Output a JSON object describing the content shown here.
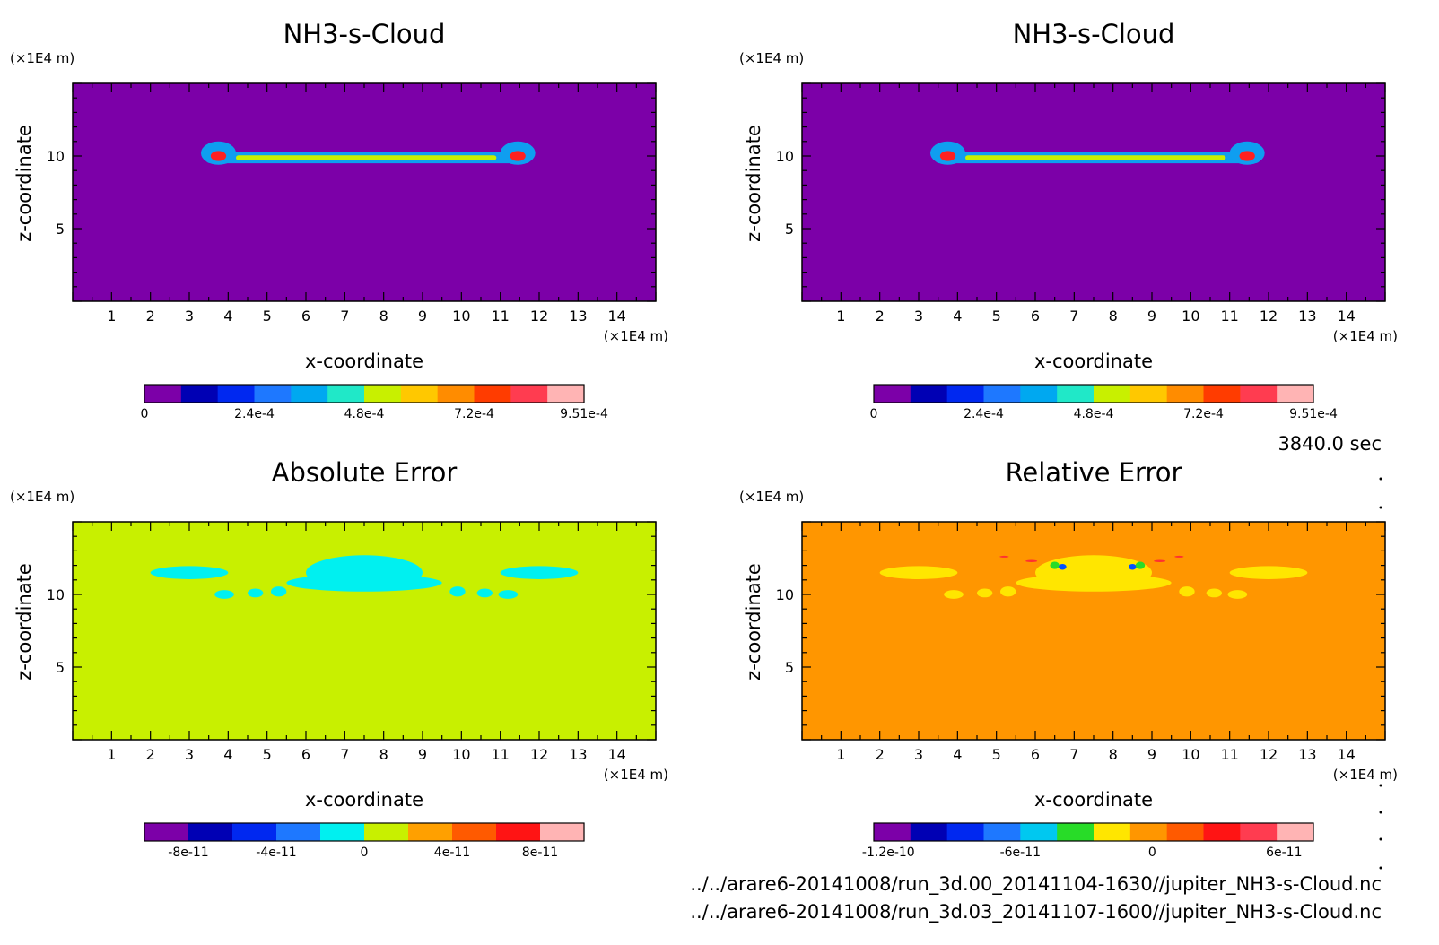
{
  "figure": {
    "time_label": "3840.0 sec",
    "source_files": [
      "../../arare6-20141008/run_3d.00_20141104-1630//jupiter_NH3-s-Cloud.nc",
      "../../arare6-20141008/run_3d.03_20141107-1600//jupiter_NH3-s-Cloud.nc"
    ]
  },
  "chart_data": [
    {
      "type": "heatmap",
      "title": "NH3-s-Cloud",
      "xlabel": "x-coordinate",
      "ylabel": "z-coordinate",
      "x_unit": "(×1E4 m)",
      "y_unit": "(×1E4 m)",
      "xlim": [
        0,
        15
      ],
      "ylim": [
        0,
        15
      ],
      "x_ticks": [
        1,
        2,
        3,
        4,
        5,
        6,
        7,
        8,
        9,
        10,
        11,
        12,
        13,
        14
      ],
      "y_ticks": [
        5,
        10
      ],
      "background_color": "#7c00a8",
      "features": [
        {
          "shape": "band",
          "x": [
            3.4,
            11.8
          ],
          "z": [
            9.5,
            10.3
          ],
          "color": "#0f9ef0"
        },
        {
          "shape": "band",
          "x": [
            4.2,
            10.9
          ],
          "z": [
            9.7,
            10.05
          ],
          "color": "#c8f000"
        },
        {
          "shape": "blob",
          "x": 3.75,
          "z": 10.2,
          "rx": 0.45,
          "rz": 0.8,
          "color": "#0f9ef0"
        },
        {
          "shape": "blob",
          "x": 11.45,
          "z": 10.2,
          "rx": 0.45,
          "rz": 0.8,
          "color": "#0f9ef0"
        },
        {
          "shape": "blob",
          "x": 3.75,
          "z": 10.0,
          "rx": 0.2,
          "rz": 0.35,
          "color": "#ff2020"
        },
        {
          "shape": "blob",
          "x": 11.45,
          "z": 10.0,
          "rx": 0.2,
          "rz": 0.35,
          "color": "#ff2020"
        }
      ],
      "colorbar": {
        "colors": [
          "#7c00a8",
          "#0000b4",
          "#0028f0",
          "#1e78ff",
          "#00a8f0",
          "#20e8c8",
          "#c8f000",
          "#ffc800",
          "#ff8c00",
          "#ff3c00",
          "#ff3c50",
          "#ffb4b4"
        ],
        "tick_labels": [
          "0",
          "2.4e-4",
          "4.8e-4",
          "7.2e-4",
          "9.51e-4"
        ],
        "tick_positions": [
          0,
          0.25,
          0.5,
          0.75,
          1.0
        ]
      }
    },
    {
      "type": "heatmap",
      "title": "NH3-s-Cloud",
      "xlabel": "x-coordinate",
      "ylabel": "z-coordinate",
      "x_unit": "(×1E4 m)",
      "y_unit": "(×1E4 m)",
      "xlim": [
        0,
        15
      ],
      "ylim": [
        0,
        15
      ],
      "x_ticks": [
        1,
        2,
        3,
        4,
        5,
        6,
        7,
        8,
        9,
        10,
        11,
        12,
        13,
        14
      ],
      "y_ticks": [
        5,
        10
      ],
      "background_color": "#7c00a8",
      "features": [
        {
          "shape": "band",
          "x": [
            3.4,
            11.8
          ],
          "z": [
            9.5,
            10.3
          ],
          "color": "#0f9ef0"
        },
        {
          "shape": "band",
          "x": [
            4.2,
            10.9
          ],
          "z": [
            9.7,
            10.05
          ],
          "color": "#c8f000"
        },
        {
          "shape": "blob",
          "x": 3.75,
          "z": 10.2,
          "rx": 0.45,
          "rz": 0.8,
          "color": "#0f9ef0"
        },
        {
          "shape": "blob",
          "x": 11.45,
          "z": 10.2,
          "rx": 0.45,
          "rz": 0.8,
          "color": "#0f9ef0"
        },
        {
          "shape": "blob",
          "x": 3.75,
          "z": 10.0,
          "rx": 0.2,
          "rz": 0.35,
          "color": "#ff2020"
        },
        {
          "shape": "blob",
          "x": 11.45,
          "z": 10.0,
          "rx": 0.2,
          "rz": 0.35,
          "color": "#ff2020"
        }
      ],
      "colorbar": {
        "colors": [
          "#7c00a8",
          "#0000b4",
          "#0028f0",
          "#1e78ff",
          "#00a8f0",
          "#20e8c8",
          "#c8f000",
          "#ffc800",
          "#ff8c00",
          "#ff3c00",
          "#ff3c50",
          "#ffb4b4"
        ],
        "tick_labels": [
          "0",
          "2.4e-4",
          "4.8e-4",
          "7.2e-4",
          "9.51e-4"
        ],
        "tick_positions": [
          0,
          0.25,
          0.5,
          0.75,
          1.0
        ]
      }
    },
    {
      "type": "heatmap",
      "title": "Absolute Error",
      "xlabel": "x-coordinate",
      "ylabel": "z-coordinate",
      "x_unit": "(×1E4 m)",
      "y_unit": "(×1E4 m)",
      "xlim": [
        0,
        15
      ],
      "ylim": [
        0,
        15
      ],
      "x_ticks": [
        1,
        2,
        3,
        4,
        5,
        6,
        7,
        8,
        9,
        10,
        11,
        12,
        13,
        14
      ],
      "y_ticks": [
        5,
        10
      ],
      "background_color": "#c8f000",
      "features": [
        {
          "shape": "blob",
          "x": 7.5,
          "z": 11.5,
          "rx": 1.5,
          "rz": 1.2,
          "color": "#00f0f0"
        },
        {
          "shape": "blob",
          "x": 7.5,
          "z": 10.8,
          "rx": 2.0,
          "rz": 0.6,
          "color": "#00f0f0"
        },
        {
          "shape": "blob",
          "x": 3.0,
          "z": 11.5,
          "rx": 1.0,
          "rz": 0.45,
          "color": "#00f0f0"
        },
        {
          "shape": "blob",
          "x": 12.0,
          "z": 11.5,
          "rx": 1.0,
          "rz": 0.45,
          "color": "#00f0f0"
        },
        {
          "shape": "blob",
          "x": 3.9,
          "z": 10.0,
          "rx": 0.25,
          "rz": 0.3,
          "color": "#00f0f0"
        },
        {
          "shape": "blob",
          "x": 4.7,
          "z": 10.1,
          "rx": 0.2,
          "rz": 0.3,
          "color": "#00f0f0"
        },
        {
          "shape": "blob",
          "x": 5.3,
          "z": 10.2,
          "rx": 0.2,
          "rz": 0.35,
          "color": "#00f0f0"
        },
        {
          "shape": "blob",
          "x": 9.9,
          "z": 10.2,
          "rx": 0.2,
          "rz": 0.35,
          "color": "#00f0f0"
        },
        {
          "shape": "blob",
          "x": 10.6,
          "z": 10.1,
          "rx": 0.2,
          "rz": 0.3,
          "color": "#00f0f0"
        },
        {
          "shape": "blob",
          "x": 11.2,
          "z": 10.0,
          "rx": 0.25,
          "rz": 0.3,
          "color": "#00f0f0"
        }
      ],
      "colorbar": {
        "colors": [
          "#7c00a8",
          "#0000b4",
          "#0028f0",
          "#1e78ff",
          "#00f0f0",
          "#c8f000",
          "#ffa000",
          "#ff5a00",
          "#ff1414",
          "#ffb4b4"
        ],
        "tick_labels": [
          "-8e-11",
          "-4e-11",
          "0",
          "4e-11",
          "8e-11"
        ],
        "tick_positions": [
          0.1,
          0.3,
          0.5,
          0.7,
          0.9
        ]
      }
    },
    {
      "type": "heatmap",
      "title": "Relative Error",
      "xlabel": "x-coordinate",
      "ylabel": "z-coordinate",
      "x_unit": "(×1E4 m)",
      "y_unit": "(×1E4 m)",
      "xlim": [
        0,
        15
      ],
      "ylim": [
        0,
        15
      ],
      "x_ticks": [
        1,
        2,
        3,
        4,
        5,
        6,
        7,
        8,
        9,
        10,
        11,
        12,
        13,
        14
      ],
      "y_ticks": [
        5,
        10
      ],
      "background_color": "#ff9600",
      "features": [
        {
          "shape": "blob",
          "x": 7.5,
          "z": 11.5,
          "rx": 1.5,
          "rz": 1.2,
          "color": "#ffe600"
        },
        {
          "shape": "blob",
          "x": 7.5,
          "z": 10.8,
          "rx": 2.0,
          "rz": 0.6,
          "color": "#ffe600"
        },
        {
          "shape": "blob",
          "x": 3.0,
          "z": 11.5,
          "rx": 1.0,
          "rz": 0.45,
          "color": "#ffe600"
        },
        {
          "shape": "blob",
          "x": 12.0,
          "z": 11.5,
          "rx": 1.0,
          "rz": 0.45,
          "color": "#ffe600"
        },
        {
          "shape": "blob",
          "x": 3.9,
          "z": 10.0,
          "rx": 0.25,
          "rz": 0.3,
          "color": "#ffe600"
        },
        {
          "shape": "blob",
          "x": 4.7,
          "z": 10.1,
          "rx": 0.2,
          "rz": 0.3,
          "color": "#ffe600"
        },
        {
          "shape": "blob",
          "x": 5.3,
          "z": 10.2,
          "rx": 0.2,
          "rz": 0.35,
          "color": "#ffe600"
        },
        {
          "shape": "blob",
          "x": 9.9,
          "z": 10.2,
          "rx": 0.2,
          "rz": 0.35,
          "color": "#ffe600"
        },
        {
          "shape": "blob",
          "x": 10.6,
          "z": 10.1,
          "rx": 0.2,
          "rz": 0.3,
          "color": "#ffe600"
        },
        {
          "shape": "blob",
          "x": 11.2,
          "z": 10.0,
          "rx": 0.25,
          "rz": 0.3,
          "color": "#ffe600"
        },
        {
          "shape": "blob",
          "x": 6.5,
          "z": 12.0,
          "rx": 0.12,
          "rz": 0.25,
          "color": "#28dc28"
        },
        {
          "shape": "blob",
          "x": 6.7,
          "z": 11.9,
          "rx": 0.1,
          "rz": 0.2,
          "color": "#0050ff"
        },
        {
          "shape": "blob",
          "x": 8.5,
          "z": 11.9,
          "rx": 0.1,
          "rz": 0.2,
          "color": "#0050ff"
        },
        {
          "shape": "blob",
          "x": 8.7,
          "z": 12.0,
          "rx": 0.12,
          "rz": 0.25,
          "color": "#28dc28"
        },
        {
          "shape": "blob",
          "x": 5.9,
          "z": 12.3,
          "rx": 0.15,
          "rz": 0.08,
          "color": "#ff3030"
        },
        {
          "shape": "blob",
          "x": 9.2,
          "z": 12.3,
          "rx": 0.15,
          "rz": 0.08,
          "color": "#ff3030"
        },
        {
          "shape": "blob",
          "x": 5.2,
          "z": 12.6,
          "rx": 0.12,
          "rz": 0.06,
          "color": "#ff3030"
        },
        {
          "shape": "blob",
          "x": 9.7,
          "z": 12.6,
          "rx": 0.12,
          "rz": 0.06,
          "color": "#ff3030"
        }
      ],
      "colorbar": {
        "colors": [
          "#7c00a8",
          "#0000b4",
          "#0028f0",
          "#1e78ff",
          "#00c8f0",
          "#28dc28",
          "#ffe600",
          "#ff9600",
          "#ff5a00",
          "#ff1414",
          "#ff3c50",
          "#ffb4b4"
        ],
        "tick_labels": [
          "-1.2e-10",
          "-6e-11",
          "0",
          "6e-11"
        ],
        "tick_positions": [
          0.0333,
          0.3333,
          0.6333,
          0.9333
        ]
      }
    }
  ]
}
